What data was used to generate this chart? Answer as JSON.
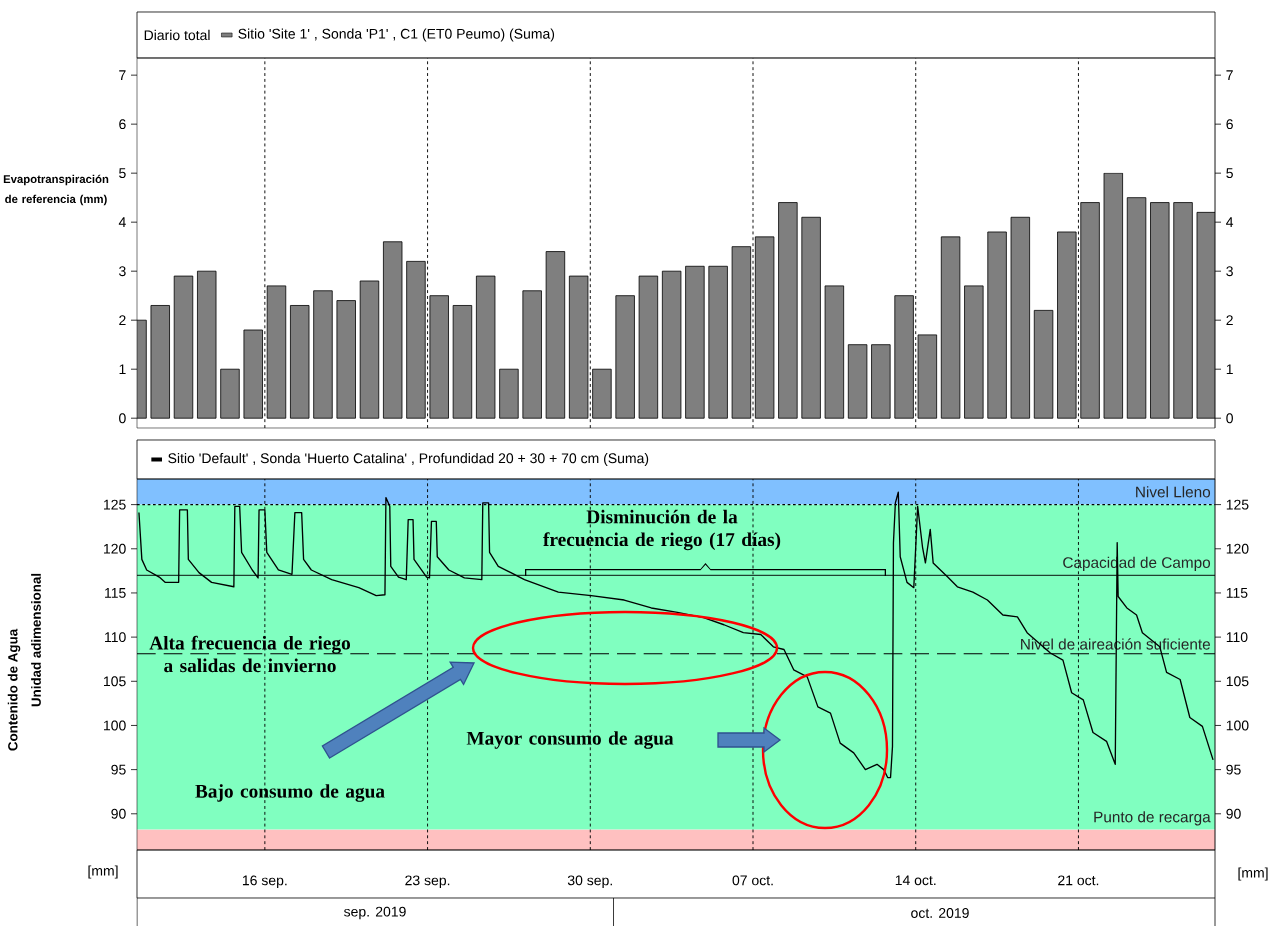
{
  "chart_data": [
    {
      "type": "bar",
      "title": "Diario total",
      "ylabel": "Evapotranspiración de referencia (mm)",
      "x": [
        "2019-09-10T12:00",
        "2019-09-11T12:00",
        "2019-09-12T12:00",
        "2019-09-13T12:00",
        "2019-09-14T12:00",
        "2019-09-15T12:00",
        "2019-09-16T12:00",
        "2019-09-17T12:00",
        "2019-09-18T12:00",
        "2019-09-19T12:00",
        "2019-09-20T12:00",
        "2019-09-21T12:00",
        "2019-09-22T12:00",
        "2019-09-23T12:00",
        "2019-09-24T12:00",
        "2019-09-25T12:00",
        "2019-09-26T12:00",
        "2019-09-27T12:00",
        "2019-09-28T12:00",
        "2019-09-29T12:00",
        "2019-09-30T12:00",
        "2019-10-01T12:00",
        "2019-10-02T12:00",
        "2019-10-03T12:00",
        "2019-10-04T12:00",
        "2019-10-05T12:00",
        "2019-10-06T12:00",
        "2019-10-07T12:00",
        "2019-10-08T12:00",
        "2019-10-09T12:00",
        "2019-10-10T12:00",
        "2019-10-11T12:00",
        "2019-10-12T12:00",
        "2019-10-13T12:00",
        "2019-10-14T12:00",
        "2019-10-15T12:00",
        "2019-10-16T12:00",
        "2019-10-17T12:00",
        "2019-10-18T12:00",
        "2019-10-19T12:00",
        "2019-10-20T12:00",
        "2019-10-21T12:00",
        "2019-10-22T12:00",
        "2019-10-23T12:00",
        "2019-10-24T12:00",
        "2019-10-25T12:00",
        "2019-10-26T12:00"
      ],
      "series": [
        {
          "name": "Sitio 'Site 1' , Sonda 'P1' , C1 (ET0 Peumo) (Suma)",
          "color": "#7f7f7f",
          "values": [
            2.0,
            2.3,
            2.9,
            3.0,
            1.0,
            1.8,
            2.7,
            2.3,
            2.6,
            2.4,
            2.8,
            3.6,
            3.2,
            2.5,
            2.3,
            2.9,
            1.0,
            2.6,
            3.4,
            2.9,
            1.0,
            2.5,
            2.9,
            3.0,
            3.1,
            3.1,
            3.5,
            3.7,
            4.4,
            4.1,
            2.7,
            1.5,
            1.5,
            2.5,
            1.7,
            3.7,
            2.7,
            3.8,
            4.1,
            2.2,
            3.8,
            4.4,
            5.0,
            4.5,
            4.4,
            4.4,
            4.2
          ]
        }
      ],
      "xlim": [
        "2019-09-10T12:00",
        "2019-10-26T21:00"
      ],
      "xticks": [
        {
          "value": "2019-09-16",
          "label": null
        },
        {
          "value": "2019-09-23",
          "label": null
        },
        {
          "value": "2019-09-30",
          "label": null
        },
        {
          "value": "2019-10-07",
          "label": null
        },
        {
          "value": "2019-10-14",
          "label": null
        },
        {
          "value": "2019-10-21",
          "label": null
        }
      ],
      "ylim": [
        -0.2,
        7.35
      ],
      "yticks": [
        0,
        1,
        2,
        3,
        4,
        5,
        6,
        7
      ],
      "y2lim": [
        -0.2,
        7.35
      ],
      "y2ticks": [
        0,
        1,
        2,
        3,
        4,
        5,
        6,
        7
      ],
      "grid": "x",
      "legend": "top left",
      "tick_labels": "y"
    },
    {
      "type": "line",
      "ylabel": "Contenido de Agua",
      "series": [
        {
          "name": "Sitio 'Default' , Sonda 'Huerto Catalina' , Profundidad 20 + 30 + 70 cm (Suma)",
          "color": "#000000",
          "x": [
            "2019-09-10T14:00",
            "2019-09-10T17:00",
            "2019-09-10T22:00",
            "2019-09-11T11:00",
            "2019-09-11T17:00",
            "2019-09-12T07:00",
            "2019-09-12T08:00",
            "2019-09-12T16:00",
            "2019-09-12T17:00",
            "2019-09-13T04:00",
            "2019-09-13T17:00",
            "2019-09-14T16:00",
            "2019-09-14T17:00",
            "2019-09-14T22:00",
            "2019-09-15T00:00",
            "2019-09-15T11:00",
            "2019-09-15T17:00",
            "2019-09-15T18:00",
            "2019-09-16T00:00",
            "2019-09-16T02:00",
            "2019-09-16T14:00",
            "2019-09-17T04:00",
            "2019-09-17T07:00",
            "2019-09-17T14:00",
            "2019-09-17T16:00",
            "2019-09-18T00:00",
            "2019-09-18T21:00",
            "2019-09-20T01:00",
            "2019-09-20T19:00",
            "2019-09-21T04:00",
            "2019-09-21T05:00",
            "2019-09-21T09:00",
            "2019-09-21T10:00",
            "2019-09-21T18:00",
            "2019-09-22T02:00",
            "2019-09-22T04:00",
            "2019-09-22T09:00",
            "2019-09-22T10:00",
            "2019-09-22T23:00",
            "2019-09-23T02:00",
            "2019-09-23T04:00",
            "2019-09-23T09:00",
            "2019-09-23T10:00",
            "2019-09-23T22:00",
            "2019-09-24T14:00",
            "2019-09-25T08:00",
            "2019-09-25T09:00",
            "2019-09-25T15:00",
            "2019-09-25T16:00",
            "2019-09-26T01:00",
            "2019-09-26T14:00",
            "2019-09-27T04:00",
            "2019-09-28T15:00",
            "2019-09-30T01:00",
            "2019-10-01T11:00",
            "2019-10-02T15:00",
            "2019-10-03T18:00",
            "2019-10-04T21:00",
            "2019-10-05T18:00",
            "2019-10-06T14:00",
            "2019-10-07T08:00",
            "2019-10-07T21:00",
            "2019-10-08T08:00",
            "2019-10-08T18:00",
            "2019-10-09T08:00",
            "2019-10-09T19:00",
            "2019-10-10T08:00",
            "2019-10-10T18:00",
            "2019-10-11T08:00",
            "2019-10-11T20:00",
            "2019-10-12T08:00",
            "2019-10-12T15:00",
            "2019-10-12T19:00",
            "2019-10-12T22:00",
            "2019-10-13T00:00",
            "2019-10-13T01:00",
            "2019-10-13T03:00",
            "2019-10-13T06:00",
            "2019-10-13T08:00",
            "2019-10-13T15:00",
            "2019-10-13T22:00",
            "2019-10-14T02:00",
            "2019-10-14T07:00",
            "2019-10-14T10:00",
            "2019-10-14T15:00",
            "2019-10-14T18:00",
            "2019-10-15T09:00",
            "2019-10-15T19:00",
            "2019-10-16T11:00",
            "2019-10-17T02:00",
            "2019-10-17T18:00",
            "2019-10-18T09:00",
            "2019-10-18T19:00",
            "2019-10-19T19:00",
            "2019-10-20T08:00",
            "2019-10-20T17:00",
            "2019-10-21T05:00",
            "2019-10-21T15:00",
            "2019-10-22T05:00",
            "2019-10-22T14:00",
            "2019-10-22T16:00",
            "2019-10-22T17:00",
            "2019-10-23T02:00",
            "2019-10-23T12:00",
            "2019-10-23T18:00",
            "2019-10-24T12:00",
            "2019-10-24T19:00",
            "2019-10-25T09:00",
            "2019-10-25T19:00",
            "2019-10-26T08:00",
            "2019-10-26T19:00"
          ],
          "values": [
            124.1,
            118.8,
            117.6,
            116.8,
            116.2,
            116.2,
            124.4,
            124.4,
            118.8,
            117.3,
            116.2,
            115.7,
            124.8,
            124.8,
            119.6,
            117.6,
            116.7,
            124.4,
            124.4,
            119.6,
            117.6,
            117.1,
            124.1,
            124.1,
            118.8,
            117.6,
            116.5,
            115.6,
            114.7,
            114.8,
            125.8,
            124.8,
            118.0,
            116.8,
            116.5,
            123.3,
            123.3,
            118.8,
            116.8,
            116.7,
            123.1,
            123.1,
            119.1,
            117.6,
            116.7,
            116.5,
            125.2,
            125.2,
            119.6,
            118.0,
            117.3,
            116.5,
            115.1,
            114.7,
            114.2,
            113.3,
            112.8,
            112.2,
            111.4,
            110.5,
            110.3,
            108.9,
            108.6,
            106.3,
            105.5,
            102.1,
            101.4,
            98.0,
            96.9,
            95.0,
            95.6,
            95.0,
            94.1,
            94.1,
            97.6,
            120.7,
            125.2,
            126.4,
            119.1,
            116.2,
            115.6,
            124.8,
            120.2,
            118.4,
            122.2,
            118.4,
            116.8,
            115.7,
            115.1,
            114.2,
            112.5,
            112.3,
            110.5,
            108.2,
            107.4,
            103.7,
            102.9,
            99.2,
            98.2,
            95.6,
            120.7,
            114.6,
            113.3,
            112.5,
            110.5,
            108.9,
            106.0,
            105.2,
            100.9,
            99.9,
            96.1
          ]
        }
      ],
      "xlim": [
        "2019-09-10T12:00",
        "2019-10-26T21:00"
      ],
      "xticks": [
        {
          "value": "2019-09-16",
          "label": "16 sep."
        },
        {
          "value": "2019-09-23",
          "label": "23 sep."
        },
        {
          "value": "2019-09-30",
          "label": "30 sep."
        },
        {
          "value": "2019-10-07",
          "label": "07 oct."
        },
        {
          "value": "2019-10-14",
          "label": "14 oct."
        },
        {
          "value": "2019-10-21",
          "label": "21 oct."
        }
      ],
      "ylim": [
        85.9,
        127.9
      ],
      "yticks": [
        90,
        95,
        100,
        105,
        110,
        115,
        120,
        125
      ],
      "y2lim": [
        85.9,
        127.9
      ],
      "y2ticks": [
        90,
        95,
        100,
        105,
        110,
        115,
        120,
        125
      ],
      "bands": [
        {
          "axis": "y",
          "from": 125,
          "to": 127.9,
          "label": "Nivel Lleno",
          "color": "#80c0ff"
        },
        {
          "axis": "y",
          "from": 88.2,
          "to": 125,
          "color": "#80ffc0"
        },
        {
          "axis": "y",
          "from": 85.9,
          "to": 88.2,
          "label": "Punto de recarga",
          "color": "#ffc0c0"
        }
      ],
      "ref_lines": [
        {
          "axis": "y",
          "value": 125,
          "line_style": "dotted"
        },
        {
          "axis": "y",
          "value": 117,
          "label": "Capacidad de Campo",
          "line_style": "solid"
        },
        {
          "axis": "y",
          "value": 108.1,
          "label": "Nivel de aireación suficiente",
          "line_style": "dashed"
        }
      ],
      "annotations": [
        "Disminución de la frecuencia de riego (17 días)",
        "Alta frecuencia de riego a salidas de invierno",
        "Mayor consumo de agua",
        "Bajo consumo de agua",
        "Unidad adimensional",
        "[mm]",
        "[mm]",
        "sep. 2019",
        "oct. 2019"
      ],
      "grid": "x",
      "legend": "top left"
    }
  ]
}
